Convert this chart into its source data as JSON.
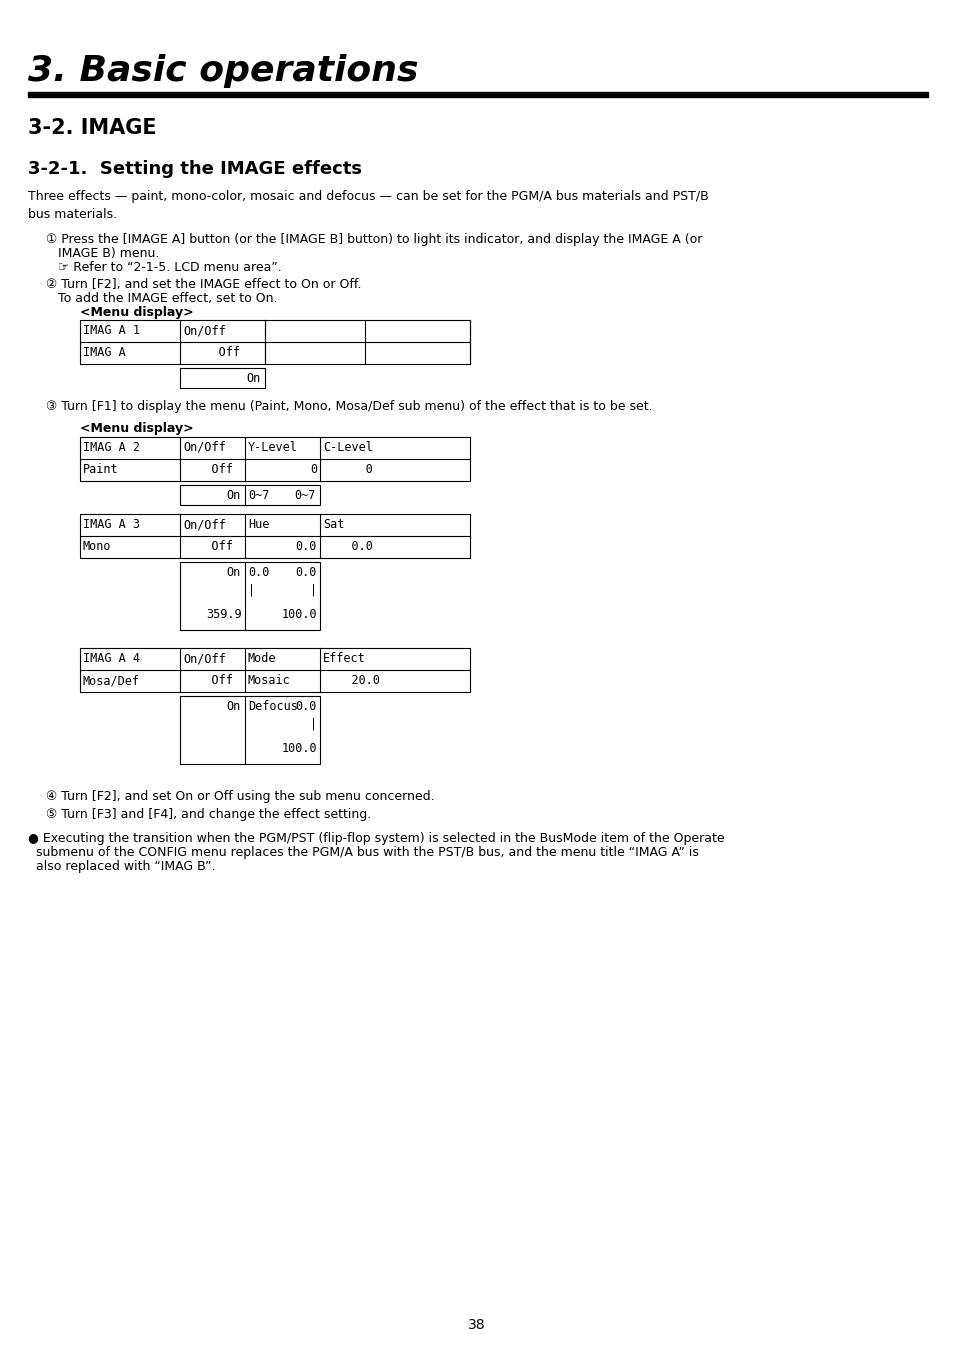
{
  "title": "3. Basic operations",
  "section": "3-2. IMAGE",
  "subsection": "3-2-1.  Setting the IMAGE effects",
  "bg_color": "#ffffff",
  "text_color": "#000000",
  "page_number": "38",
  "intro_text": "Three effects — paint, mono-color, mosaic and defocus — can be set for the PGM/A bus materials and PST/B\nbus materials.",
  "step1a": "① Press the [IMAGE A] button (or the [IMAGE B] button) to light its indicator, and display the IMAGE A (or",
  "step1b": "   IMAGE B) menu.",
  "step1c": "   ☞ Refer to “2-1-5. LCD menu area”.",
  "step2a": "② Turn [F2], and set the IMAGE effect to On or Off.",
  "step2b": "   To add the IMAGE effect, set to On.",
  "menu_display": "<Menu display>",
  "step3": "③ Turn [F1] to display the menu (Paint, Mono, Mosa/Def sub menu) of the effect that is to be set.",
  "step4": "④ Turn [F2], and set On or Off using the sub menu concerned.",
  "step5": "⑤ Turn [F3] and [F4], and change the effect setting.",
  "bullet": "● Executing the transition when the PGM/PST (flip-flop system) is selected in the BusMode item of the Operate",
  "bullet2": "  submenu of the CONFIG menu replaces the PGM/A bus with the PST/B bus, and the menu title “IMAG A” is",
  "bullet3": "  also replaced with “IMAG B”."
}
